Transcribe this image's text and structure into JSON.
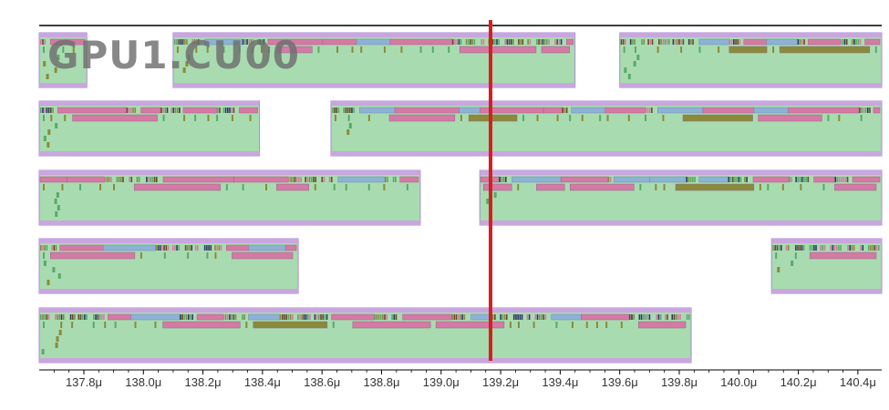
{
  "timeline": {
    "title": "GPU1.CU00",
    "axis": {
      "unit": "μ",
      "start_us": 137.65,
      "end_us": 140.48,
      "ticks": [
        "137.8μ",
        "138.0μ",
        "138.2μ",
        "138.4μ",
        "138.6μ",
        "138.8μ",
        "139.0μ",
        "139.2μ",
        "139.4μ",
        "139.6μ",
        "139.8μ",
        "140.0μ",
        "140.2μ",
        "140.4μ"
      ],
      "tick_values": [
        137.8,
        138.0,
        138.2,
        138.4,
        138.6,
        138.8,
        139.0,
        139.2,
        139.4,
        139.6,
        139.8,
        140.0,
        140.2,
        140.4
      ]
    },
    "cursor_us": 139.0,
    "colors": {
      "block_fill": "#a8dcb0",
      "block_border": "#a78bd2",
      "block_header": "#c9a6dd",
      "inst_pink": "#d47aa5",
      "inst_blue": "#8eb1d6",
      "inst_olive": "#8a8a3a",
      "inst_green": "#5aa86a",
      "inst_dark": "#2e3a66",
      "cursor": "#d42020",
      "axis_line": "#000000"
    },
    "lanes": [
      {
        "blocks": [
          {
            "start_us": 137.65,
            "end_us": 137.81
          },
          {
            "start_us": 138.1,
            "end_us": 139.45
          },
          {
            "start_us": 139.6,
            "end_us": 140.48
          }
        ]
      },
      {
        "blocks": [
          {
            "start_us": 137.65,
            "end_us": 138.39
          },
          {
            "start_us": 138.63,
            "end_us": 140.48
          }
        ]
      },
      {
        "blocks": [
          {
            "start_us": 137.65,
            "end_us": 138.93
          },
          {
            "start_us": 139.13,
            "end_us": 140.48
          }
        ]
      },
      {
        "blocks": [
          {
            "start_us": 137.65,
            "end_us": 138.52
          },
          {
            "start_us": 140.11,
            "end_us": 140.48
          }
        ]
      },
      {
        "blocks": [
          {
            "start_us": 137.65,
            "end_us": 139.84
          }
        ]
      }
    ]
  }
}
